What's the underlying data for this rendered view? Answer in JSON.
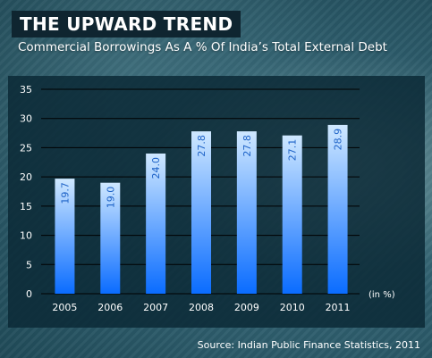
{
  "title": "THE UPWARD TREND",
  "subtitle": "Commercial Borrowings As A % Of India’s Total External Debt",
  "source": "Source: Indian Public Finance Statistics, 2011",
  "colors": {
    "bar_top": "#cfe8ff",
    "bar_bottom": "#0a6cff",
    "label": "#1d62c7",
    "grid": "#000000",
    "text": "#ffffff"
  },
  "chart_data": {
    "type": "bar",
    "categories": [
      "2005",
      "2006",
      "2007",
      "2008",
      "2009",
      "2010",
      "2011"
    ],
    "values": [
      19.7,
      19.0,
      24.0,
      27.8,
      27.8,
      27.1,
      28.9
    ],
    "data_labels": [
      "19.7",
      "19.0",
      "24.0",
      "27.8",
      "27.8",
      "27.1",
      "28.9"
    ],
    "title": "THE UPWARD TREND",
    "subtitle": "Commercial Borrowings As A % Of India’s Total External Debt",
    "xlabel": "",
    "ylabel": "",
    "unit_label": "(in %)",
    "ylim": [
      0,
      35
    ],
    "yticks": [
      0,
      5,
      10,
      15,
      20,
      25,
      30,
      35
    ],
    "grid": true,
    "legend": "none"
  }
}
